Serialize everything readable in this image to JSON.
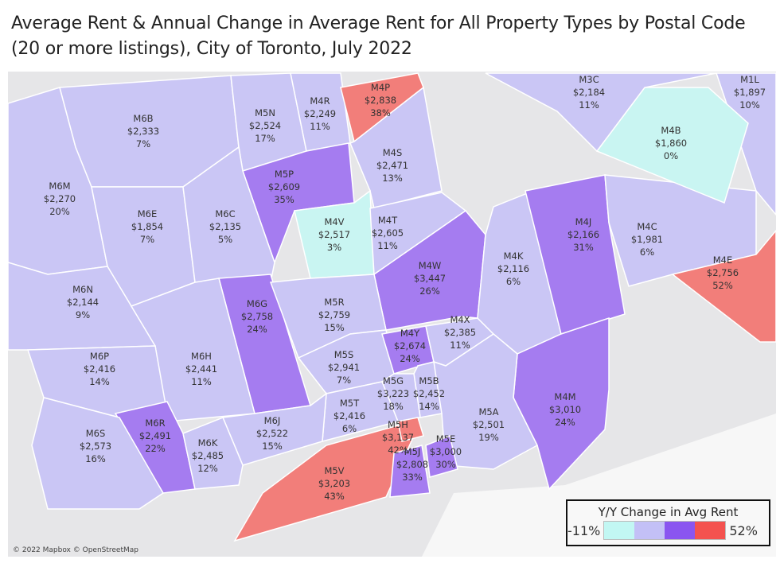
{
  "title": "Average Rent & Annual Change in Average Rent for All Property Types by Postal Code (20 or more listings), City of Toronto, July 2022",
  "attribution": "© 2022 Mapbox © OpenStreetMap",
  "legend": {
    "title": "Y/Y Change in Avg Rent",
    "min": "-11%",
    "max": "52%",
    "colors": [
      "#c2f7f3",
      "#c3c0f6",
      "#8a55f0",
      "#f4524f"
    ]
  },
  "fill_colors": {
    "low": "#c9f5f2",
    "mid": "#cac6f5",
    "high": "#a57cf0",
    "top": "#f27e7a"
  },
  "regions": [
    {
      "code": "M6M",
      "rent": "$2,270",
      "change": "20%",
      "level": "mid"
    },
    {
      "code": "M6B",
      "rent": "$2,333",
      "change": "7%",
      "level": "mid"
    },
    {
      "code": "M5N",
      "rent": "$2,524",
      "change": "17%",
      "level": "mid"
    },
    {
      "code": "M4R",
      "rent": "$2,249",
      "change": "11%",
      "level": "mid"
    },
    {
      "code": "M4P",
      "rent": "$2,838",
      "change": "38%",
      "level": "top"
    },
    {
      "code": "M4S",
      "rent": "$2,471",
      "change": "13%",
      "level": "mid"
    },
    {
      "code": "M5P",
      "rent": "$2,609",
      "change": "35%",
      "level": "high"
    },
    {
      "code": "M6E",
      "rent": "$1,854",
      "change": "7%",
      "level": "mid"
    },
    {
      "code": "M6C",
      "rent": "$2,135",
      "change": "5%",
      "level": "mid"
    },
    {
      "code": "M4V",
      "rent": "$2,517",
      "change": "3%",
      "level": "low"
    },
    {
      "code": "M4T",
      "rent": "$2,605",
      "change": "11%",
      "level": "mid"
    },
    {
      "code": "M4W",
      "rent": "$3,447",
      "change": "26%",
      "level": "high"
    },
    {
      "code": "M6N",
      "rent": "$2,144",
      "change": "9%",
      "level": "mid"
    },
    {
      "code": "M6G",
      "rent": "$2,758",
      "change": "24%",
      "level": "high"
    },
    {
      "code": "M5R",
      "rent": "$2,759",
      "change": "15%",
      "level": "mid"
    },
    {
      "code": "M6H",
      "rent": "$2,441",
      "change": "11%",
      "level": "mid"
    },
    {
      "code": "M6P",
      "rent": "$2,416",
      "change": "14%",
      "level": "mid"
    },
    {
      "code": "M5S",
      "rent": "$2,941",
      "change": "7%",
      "level": "mid"
    },
    {
      "code": "M4Y",
      "rent": "$2,674",
      "change": "24%",
      "level": "high"
    },
    {
      "code": "M4X",
      "rent": "$2,385",
      "change": "11%",
      "level": "mid"
    },
    {
      "code": "M4K",
      "rent": "$2,116",
      "change": "6%",
      "level": "mid"
    },
    {
      "code": "M4J",
      "rent": "$2,166",
      "change": "31%",
      "level": "high"
    },
    {
      "code": "M4C",
      "rent": "$1,981",
      "change": "6%",
      "level": "mid"
    },
    {
      "code": "M1L",
      "rent": "$1,897",
      "change": "10%",
      "level": "mid"
    },
    {
      "code": "M4B",
      "rent": "$1,860",
      "change": "0%",
      "level": "low"
    },
    {
      "code": "M3C",
      "rent": "$2,184",
      "change": "11%",
      "level": "mid"
    },
    {
      "code": "M4E",
      "rent": "$2,756",
      "change": "52%",
      "level": "top"
    },
    {
      "code": "M4M",
      "rent": "$3,010",
      "change": "24%",
      "level": "high"
    },
    {
      "code": "M5A",
      "rent": "$2,501",
      "change": "19%",
      "level": "mid"
    },
    {
      "code": "M5B",
      "rent": "$2,452",
      "change": "14%",
      "level": "mid"
    },
    {
      "code": "M5G",
      "rent": "$3,223",
      "change": "18%",
      "level": "mid"
    },
    {
      "code": "M5T",
      "rent": "$2,416",
      "change": "6%",
      "level": "mid"
    },
    {
      "code": "M6J",
      "rent": "$2,522",
      "change": "15%",
      "level": "mid"
    },
    {
      "code": "M6R",
      "rent": "$2,491",
      "change": "22%",
      "level": "high"
    },
    {
      "code": "M6S",
      "rent": "$2,573",
      "change": "16%",
      "level": "mid"
    },
    {
      "code": "M6K",
      "rent": "$2,485",
      "change": "12%",
      "level": "mid"
    },
    {
      "code": "M5V",
      "rent": "$3,203",
      "change": "43%",
      "level": "top"
    },
    {
      "code": "M5H",
      "rent": "$3,137",
      "change": "42%",
      "level": "top"
    },
    {
      "code": "M5J",
      "rent": "$2,808",
      "change": "33%",
      "level": "high"
    },
    {
      "code": "M5E",
      "rent": "$3,000",
      "change": "30%",
      "level": "high"
    }
  ]
}
